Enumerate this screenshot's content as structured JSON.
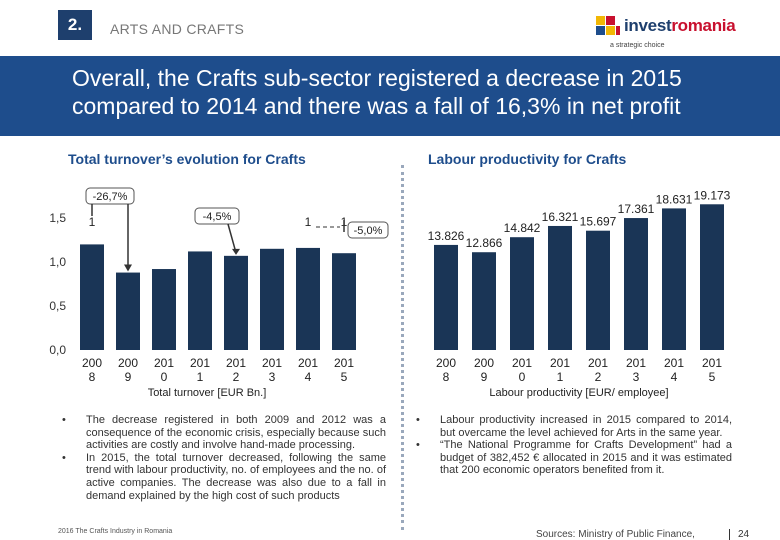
{
  "header": {
    "section_number": "2.",
    "section_title": "ARTS AND CRAFTS",
    "logo": {
      "prefix": "invest",
      "suffix": "romania",
      "tagline": "a strategic choice"
    }
  },
  "banner": {
    "headline": "Overall, the Crafts sub-sector registered a decrease in 2015 compared to 2014 and there was a fall of 16,3% in net profit"
  },
  "left_panel": {
    "title": "Total turnover’s evolution for Crafts",
    "bullets": [
      "The decrease registered in both 2009 and 2012 was a consequence of the economic crisis, especially because such activities are costly and involve hand-made processing.",
      "In 2015, the total turnover decreased, following the same trend with labour productivity, no. of employees and the no. of active companies. The decrease was also due to a fall in demand explained by the high cost of such products"
    ]
  },
  "right_panel": {
    "title": "Labour productivity for Crafts",
    "bullets": [
      "Labour productivity increased in 2015 compared to 2014, but overcame the level achieved for Arts in the same year.",
      "“The National Programme for Crafts Development” had a budget of 382,452 € allocated in 2015 and it was estimated that 200 economic operators benefited from it."
    ]
  },
  "footer": {
    "left_note": "2016 The Crafts Industry in Romania",
    "sources": "Sources: Ministry of Public Finance,",
    "page": "24"
  },
  "colors": {
    "navy": "#1e3f6d",
    "banner": "#1e4d8c",
    "bar": "#1a3556",
    "accent_red": "#c8102e"
  },
  "chart_data": [
    {
      "type": "bar",
      "title": "",
      "xlabel": "Total turnover [EUR Bn.]",
      "ylabel": "",
      "ylim": [
        0,
        1.5
      ],
      "yticks": [
        "0,0",
        "0,5",
        "1,0",
        "1,5"
      ],
      "categories": [
        "2008",
        "2009",
        "2010",
        "2011",
        "2012",
        "2013",
        "2014",
        "2015"
      ],
      "values": [
        1.2,
        0.88,
        0.92,
        1.12,
        1.07,
        1.15,
        1.16,
        1.1
      ],
      "data_labels": [
        {
          "index": 0,
          "text": "1"
        },
        {
          "index": 6,
          "text": "1"
        },
        {
          "index": 7,
          "text": "1"
        }
      ],
      "annotations": [
        "-26,7%",
        "-4,5%",
        "-5,0%"
      ],
      "grid": false,
      "legend": "none"
    },
    {
      "type": "bar",
      "title": "",
      "xlabel": "Labour productivity [EUR/ employee]",
      "ylabel": "",
      "ylim": [
        0,
        20000
      ],
      "categories": [
        "2008",
        "2009",
        "2010",
        "2011",
        "2012",
        "2013",
        "2014",
        "2015"
      ],
      "values": [
        13826,
        12866,
        14842,
        16321,
        15697,
        17361,
        18631,
        19173
      ],
      "data_labels": [
        "13.826",
        "12.866",
        "14.842",
        "16.321",
        "15.697",
        "17.361",
        "18.631",
        "19.173"
      ],
      "grid": false,
      "legend": "none"
    }
  ]
}
